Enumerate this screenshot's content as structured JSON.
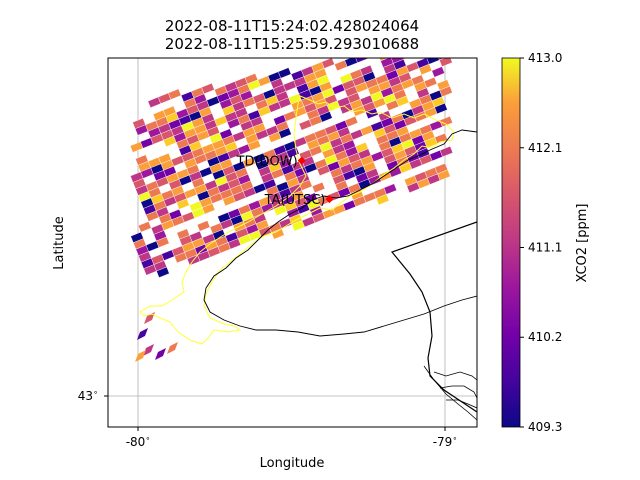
{
  "title": {
    "line1": "2022-08-11T15:24:02.428024064",
    "line2": "2022-08-11T15:25:59.293010688"
  },
  "axes": {
    "xlabel": "Longitude",
    "ylabel": "Latitude",
    "xticks": [
      {
        "value": -80,
        "label": "-80$^\\circ$"
      },
      {
        "value": -79,
        "label": "-79$^\\circ$"
      }
    ],
    "yticks": [
      {
        "value": 43,
        "label": "43$^\\circ$"
      }
    ],
    "xlim": [
      -80.1,
      -78.9
    ],
    "ylim": [
      42.95,
      44.1
    ],
    "grid": true
  },
  "colorbar": {
    "label": "XCO2 [ppm]",
    "min": 409.3,
    "max": 413.0,
    "ticks": [
      "409.3",
      "410.2",
      "411.1",
      "412.1",
      "413.0"
    ],
    "colormap": "plasma"
  },
  "sites": [
    {
      "name": "TD(DOW)",
      "lon": -79.47,
      "lat": 43.78,
      "color": "#ff0000"
    },
    {
      "name": "TA(UTSC)",
      "lon": -79.38,
      "lat": 43.66,
      "color": "#ff0000"
    }
  ],
  "chart_data": {
    "type": "heatmap",
    "title": "2022-08-11T15:24:02.428024064 2022-08-11T15:25:59.293010688",
    "xlabel": "Longitude",
    "ylabel": "Latitude",
    "value_range": [
      409.3,
      413.0
    ],
    "colorbar_label": "XCO2 [ppm]",
    "note_colors": {
      "boundary": "#ffff00",
      "coast": "#000000"
    }
  }
}
